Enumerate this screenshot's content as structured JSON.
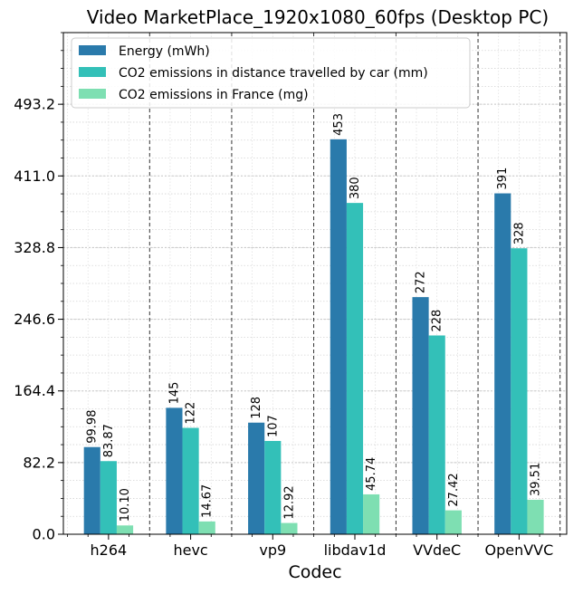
{
  "chart_data": {
    "type": "bar",
    "title": "Video MarketPlace_1920x1080_60fps (Desktop PC)",
    "xlabel": "Codec",
    "ylabel": "",
    "categories": [
      "h264",
      "hevc",
      "vp9",
      "libdav1d",
      "VVdeC",
      "OpenVVC"
    ],
    "series": [
      {
        "name": "Energy (mWh)",
        "color": "#2a7aab",
        "values": [
          99.98,
          145,
          128,
          453,
          272,
          391
        ],
        "labels": [
          "99.98",
          "145",
          "128",
          "453",
          "272",
          "391"
        ]
      },
      {
        "name": "CO2 emissions in distance travelled by car (mm)",
        "color": "#33c0b8",
        "values": [
          83.87,
          122,
          107,
          380,
          228,
          328
        ],
        "labels": [
          "83.87",
          "122",
          "107",
          "380",
          "228",
          "328"
        ]
      },
      {
        "name": "CO2 emissions in France (mg)",
        "color": "#7edfb2",
        "values": [
          10.1,
          14.67,
          12.92,
          45.74,
          27.42,
          39.51
        ],
        "labels": [
          "10.10",
          "14.67",
          "12.92",
          "45.74",
          "27.42",
          "39.51"
        ]
      }
    ],
    "yticks": [
      "0.0",
      "82.2",
      "164.4",
      "246.6",
      "328.8",
      "411.0",
      "493.2"
    ],
    "ytick_values": [
      0,
      82.2,
      164.4,
      246.6,
      328.8,
      411.0,
      493.2
    ],
    "ylim": [
      0,
      575.4
    ],
    "grid": true,
    "legend_position": "top-left"
  }
}
